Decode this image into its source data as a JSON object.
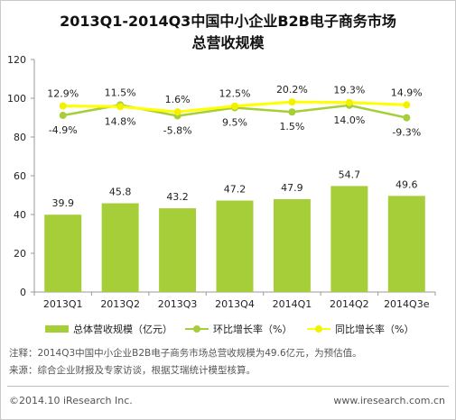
{
  "title_line1": "2013Q1-2014Q3中国中小企业B2B电子商务市场",
  "title_line2": "总营收规模",
  "chart_data": {
    "type": "bar",
    "categories": [
      "2013Q1",
      "2013Q2",
      "2013Q3",
      "2013Q4",
      "2014Q1",
      "2014Q2",
      "2014Q3e"
    ],
    "series": [
      {
        "name": "总体营收规模（亿元）",
        "type": "bar",
        "values": [
          39.9,
          45.8,
          43.2,
          47.2,
          47.9,
          54.7,
          49.6
        ],
        "labels": [
          "39.9",
          "45.8",
          "43.2",
          "47.2",
          "47.9",
          "54.7",
          "49.6"
        ]
      },
      {
        "name": "环比增长率（%）",
        "type": "line",
        "values": [
          -4.9,
          14.8,
          -5.8,
          9.5,
          1.5,
          14.0,
          -9.3
        ],
        "labels": [
          "-4.9%",
          "14.8%",
          "-5.8%",
          "9.5%",
          "1.5%",
          "14.0%",
          "-9.3%"
        ]
      },
      {
        "name": "同比增长率（%）",
        "type": "line",
        "values": [
          12.9,
          11.5,
          1.6,
          12.5,
          20.2,
          19.3,
          14.9
        ],
        "labels": [
          "12.9%",
          "11.5%",
          "1.6%",
          "12.5%",
          "20.2%",
          "19.3%",
          "14.9%"
        ]
      }
    ],
    "y_ticks": [
      "0",
      "20",
      "40",
      "60",
      "80",
      "100",
      "120"
    ],
    "ylim": [
      0,
      120
    ],
    "grid": false,
    "legend_position": "bottom",
    "colors": {
      "bar": "#a6ce39",
      "mom_line": "#a6ce39",
      "yoy_line": "#ffff00",
      "yoy_marker": "#f2f200"
    }
  },
  "notes": {
    "line1": "注释：2014Q3中国中小企业B2B电子商务市场总营收规模为49.6亿元，为预估值。",
    "line2": "来源：综合企业财报及专家访谈，根据艾瑞统计模型核算。"
  },
  "footer": {
    "left": "©2014.10 iResearch Inc.",
    "right": "www.iresearch.com.cn"
  }
}
